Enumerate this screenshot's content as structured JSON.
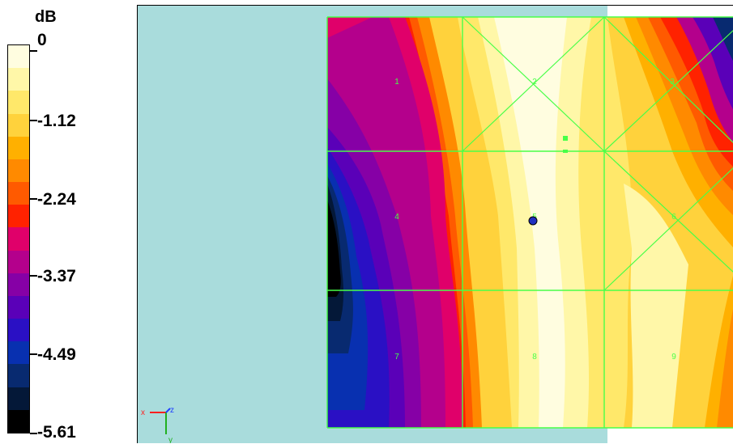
{
  "legend": {
    "unit": "dB",
    "ticks": [
      "0",
      "-1.12",
      "-2.24",
      "-3.37",
      "-4.49",
      "-5.61"
    ],
    "colors": [
      "#fffde0",
      "#fff7a8",
      "#ffe86a",
      "#ffd23c",
      "#ffb000",
      "#ff8a00",
      "#ff5a00",
      "#ff2200",
      "#e0006a",
      "#b4008c",
      "#8600a6",
      "#5a00b8",
      "#2a10c4",
      "#0830b0",
      "#082a70",
      "#041838",
      "#000000"
    ]
  },
  "viewport": {
    "background_colors": {
      "cyan": "#a9dcdc",
      "white": "#ffffff"
    },
    "grid_color": "#48ff48",
    "sections": [
      "1",
      "2",
      "3",
      "4",
      "5",
      "6",
      "7",
      "8",
      "9"
    ],
    "axis_labels": {
      "x": "x",
      "y": "y",
      "z": "z"
    }
  }
}
